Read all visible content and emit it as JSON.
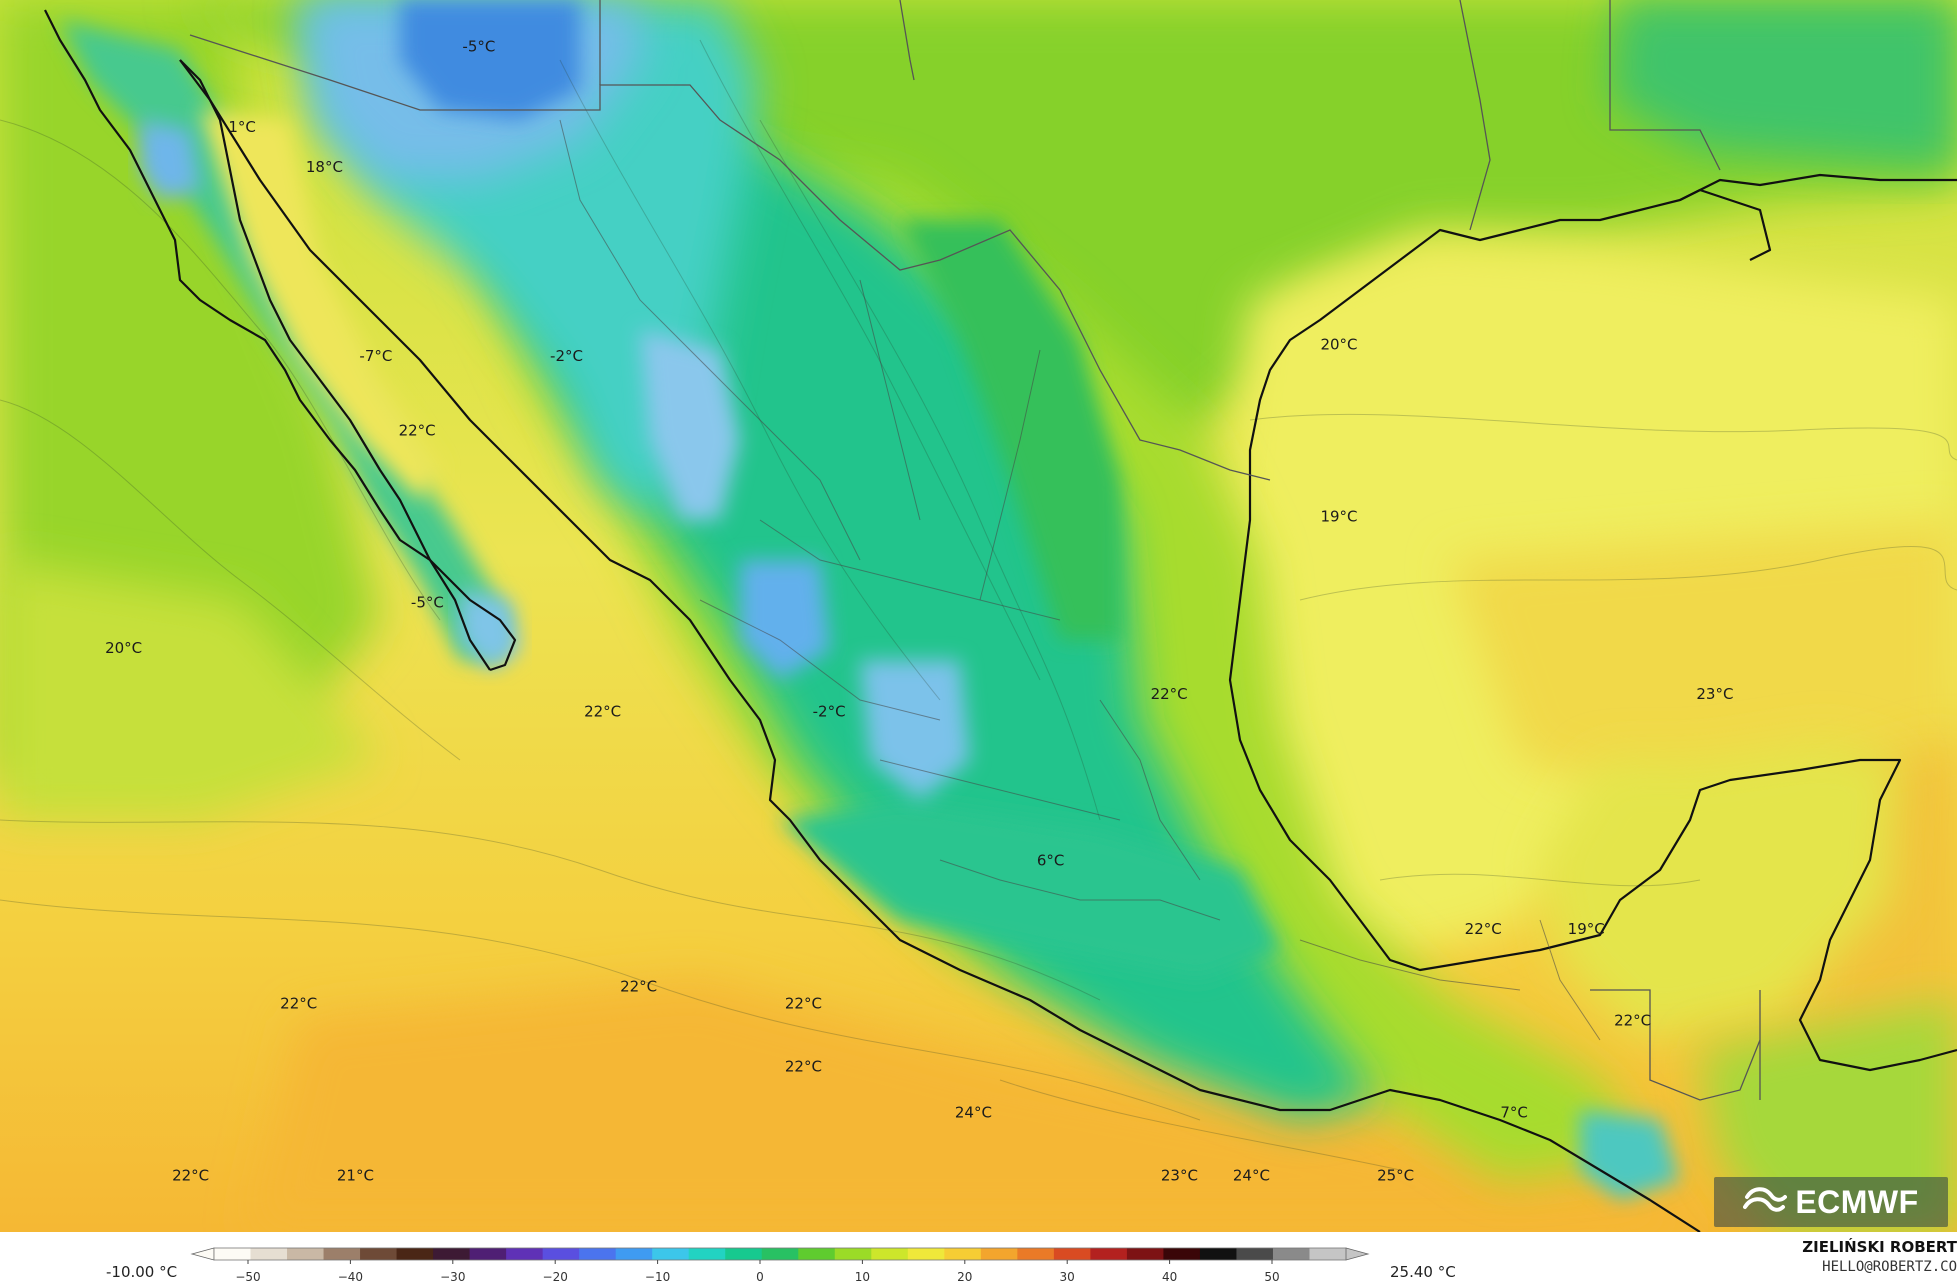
{
  "colors": {
    "ocean_pacific_south": "#f6c637",
    "ocean_pacific_mid": "#eedd4a",
    "gulf": "#efef62",
    "caribbean": "#f2cf3e",
    "land_us": "#8fd62a",
    "highlands": "#1fc78f",
    "peaks": "#3ec9c9",
    "cold": "#6ab8f0",
    "very_cold": "#3d86e0",
    "coast_green": "#a6dd33",
    "coastline": "#111111",
    "borders": "#555555"
  },
  "labels": [
    {
      "text": "-5°C",
      "lon": -111.2,
      "lat": 32.6
    },
    {
      "text": "1°C",
      "lon": -115.8,
      "lat": 31.2
    },
    {
      "text": "18°C",
      "lon": -114.2,
      "lat": 30.5
    },
    {
      "text": "-7°C",
      "lon": -113.2,
      "lat": 27.2
    },
    {
      "text": "-2°C",
      "lon": -109.5,
      "lat": 27.2
    },
    {
      "text": "22°C",
      "lon": -112.4,
      "lat": 25.9
    },
    {
      "text": "20°C",
      "lon": -94.5,
      "lat": 27.4
    },
    {
      "text": "19°C",
      "lon": -94.5,
      "lat": 24.4
    },
    {
      "text": "-5°C",
      "lon": -112.2,
      "lat": 22.9
    },
    {
      "text": "20°C",
      "lon": -118.1,
      "lat": 22.1
    },
    {
      "text": "22°C",
      "lon": -97.8,
      "lat": 21.3
    },
    {
      "text": "23°C",
      "lon": -87.2,
      "lat": 21.3
    },
    {
      "text": "22°C",
      "lon": -108.8,
      "lat": 21.0
    },
    {
      "text": "-2°C",
      "lon": -104.4,
      "lat": 21.0
    },
    {
      "text": "6°C",
      "lon": -100.1,
      "lat": 18.4
    },
    {
      "text": "22°C",
      "lon": -91.7,
      "lat": 17.2
    },
    {
      "text": "19°C",
      "lon": -89.7,
      "lat": 17.2
    },
    {
      "text": "22°C",
      "lon": -114.7,
      "lat": 15.9
    },
    {
      "text": "22°C",
      "lon": -108.1,
      "lat": 16.2
    },
    {
      "text": "22°C",
      "lon": -104.9,
      "lat": 15.9
    },
    {
      "text": "22°C",
      "lon": -88.8,
      "lat": 15.6
    },
    {
      "text": "22°C",
      "lon": -104.9,
      "lat": 14.8
    },
    {
      "text": "24°C",
      "lon": -101.6,
      "lat": 14.0
    },
    {
      "text": "7°C",
      "lon": -91.1,
      "lat": 14.0
    },
    {
      "text": "22°C",
      "lon": -116.8,
      "lat": 12.9
    },
    {
      "text": "21°C",
      "lon": -113.6,
      "lat": 12.9
    },
    {
      "text": "23°C",
      "lon": -97.6,
      "lat": 12.9
    },
    {
      "text": "24°C",
      "lon": -96.2,
      "lat": 12.9
    },
    {
      "text": "25°C",
      "lon": -93.4,
      "lat": 12.9
    }
  ],
  "legend": {
    "min_label": "-10.00 °C",
    "max_label": "25.40 °C",
    "ticks": [
      "−50",
      "−40",
      "−30",
      "−20",
      "−10",
      "0",
      "10",
      "20",
      "30",
      "40",
      "50"
    ],
    "colors": [
      "#fdfbf5",
      "#e6ded2",
      "#c9b8a5",
      "#9c7f6a",
      "#6e4a37",
      "#4a2616",
      "#3d1a34",
      "#4f1f74",
      "#5f31b6",
      "#5a4fe0",
      "#4b74ee",
      "#3f9bf2",
      "#3cc6ea",
      "#22d3c2",
      "#17c98f",
      "#28c163",
      "#5fcc2f",
      "#9bdb27",
      "#cde62b",
      "#efe83a",
      "#f6cd34",
      "#f3a52d",
      "#ea7a27",
      "#d94b22",
      "#b3211f",
      "#7d1214",
      "#3a0608",
      "#111111",
      "#4a4a4a",
      "#8a8a8a",
      "#c5c5c5"
    ]
  },
  "credit": {
    "name": "ZIELIŃSKI ROBERT",
    "email": "HELLO@ROBERTZ.CO"
  },
  "logo": {
    "text": "ECMWF",
    "icon": "ecmwf-logo-icon"
  }
}
